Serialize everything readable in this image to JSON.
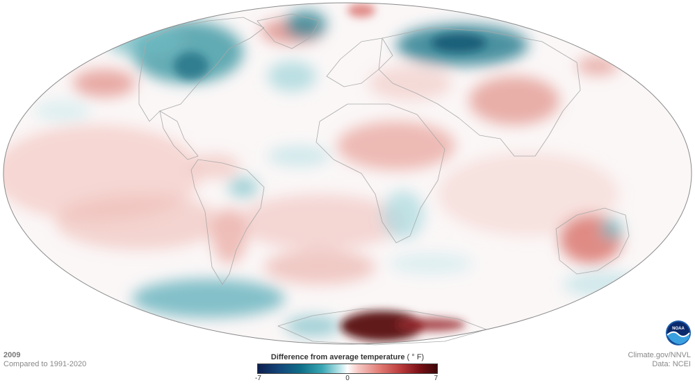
{
  "map": {
    "title_year": "2009",
    "comparison": "Compared to 1991-2020",
    "source_site": "Climate.gov/NNVL",
    "source_data": "Data: NCEI",
    "logo_text": "NOAA",
    "projection": "Mollweide",
    "legend": {
      "title": "Difference from average temperature",
      "unit": "( ° F)",
      "min_label": "-7",
      "mid_label": "0",
      "max_label": "7",
      "min_value": -7,
      "max_value": 7,
      "colors": {
        "cold_extreme": "#0d1f4f",
        "cold": "#0f6f88",
        "neutral": "#ffffff",
        "warm": "#e17b74",
        "warm_extreme": "#3b0708"
      }
    }
  }
}
